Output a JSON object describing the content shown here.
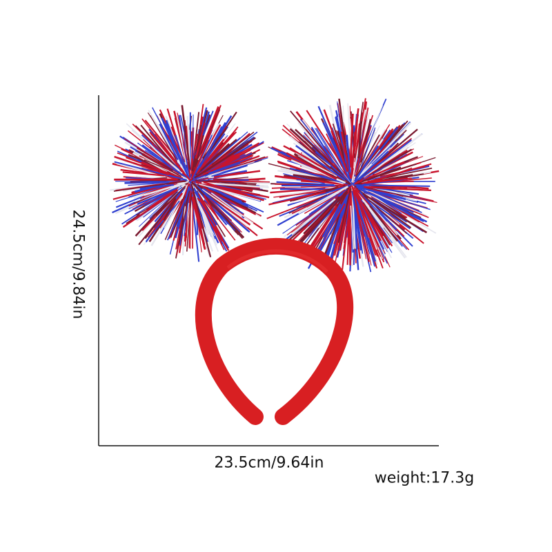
{
  "dimensions": {
    "height_label": "24.5cm/9.84in",
    "width_label": "23.5cm/9.64in",
    "weight_label": "weight:17.3g"
  },
  "product": {
    "name": "tinsel pom-pom headband",
    "colors": {
      "band": "#d81f22",
      "tinsel_red": "#c8142c",
      "tinsel_blue": "#3040d0",
      "tinsel_white": "#e6e6ee",
      "tinsel_dark": "#7a1a30"
    }
  }
}
